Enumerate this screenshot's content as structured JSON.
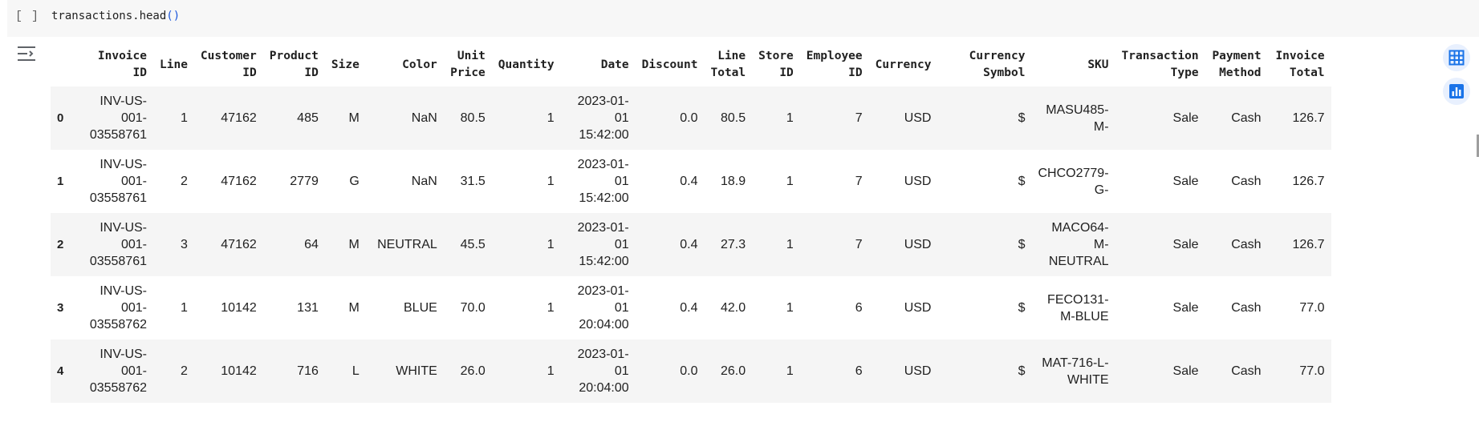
{
  "cell": {
    "run_indicator": "[ ]",
    "code_prefix": "transactions.head",
    "code_parens": "()"
  },
  "icons": {
    "output_toggle": "output-menu-icon",
    "table_view": "table-grid-icon",
    "chart_suggest": "bar-chart-icon"
  },
  "colors": {
    "accent": "#1a73e8",
    "icon_bg": "#e8f0fe",
    "row_stripe": "#f5f5f5"
  },
  "table": {
    "columns": [
      "Invoice ID",
      "Line",
      "Customer ID",
      "Product ID",
      "Size",
      "Color",
      "Unit Price",
      "Quantity",
      "Date",
      "Discount",
      "Line Total",
      "Store ID",
      "Employee ID",
      "Currency",
      "Currency Symbol",
      "SKU",
      "Transaction Type",
      "Payment Method",
      "Invoice Total"
    ],
    "rows": [
      {
        "index": "0",
        "cells": [
          "INV-US-001-03558761",
          "1",
          "47162",
          "485",
          "M",
          "NaN",
          "80.5",
          "1",
          "2023-01-01 15:42:00",
          "0.0",
          "80.5",
          "1",
          "7",
          "USD",
          "$",
          "MASU485-M-",
          "Sale",
          "Cash",
          "126.7"
        ]
      },
      {
        "index": "1",
        "cells": [
          "INV-US-001-03558761",
          "2",
          "47162",
          "2779",
          "G",
          "NaN",
          "31.5",
          "1",
          "2023-01-01 15:42:00",
          "0.4",
          "18.9",
          "1",
          "7",
          "USD",
          "$",
          "CHCO2779-G-",
          "Sale",
          "Cash",
          "126.7"
        ]
      },
      {
        "index": "2",
        "cells": [
          "INV-US-001-03558761",
          "3",
          "47162",
          "64",
          "M",
          "NEUTRAL",
          "45.5",
          "1",
          "2023-01-01 15:42:00",
          "0.4",
          "27.3",
          "1",
          "7",
          "USD",
          "$",
          "MACO64-M-NEUTRAL",
          "Sale",
          "Cash",
          "126.7"
        ]
      },
      {
        "index": "3",
        "cells": [
          "INV-US-001-03558762",
          "1",
          "10142",
          "131",
          "M",
          "BLUE",
          "70.0",
          "1",
          "2023-01-01 20:04:00",
          "0.4",
          "42.0",
          "1",
          "6",
          "USD",
          "$",
          "FECO131-M-BLUE",
          "Sale",
          "Cash",
          "77.0"
        ]
      },
      {
        "index": "4",
        "cells": [
          "INV-US-001-03558762",
          "2",
          "10142",
          "716",
          "L",
          "WHITE",
          "26.0",
          "1",
          "2023-01-01 20:04:00",
          "0.0",
          "26.0",
          "1",
          "6",
          "USD",
          "$",
          "MAT-716-L-WHITE",
          "Sale",
          "Cash",
          "77.0"
        ]
      }
    ]
  }
}
